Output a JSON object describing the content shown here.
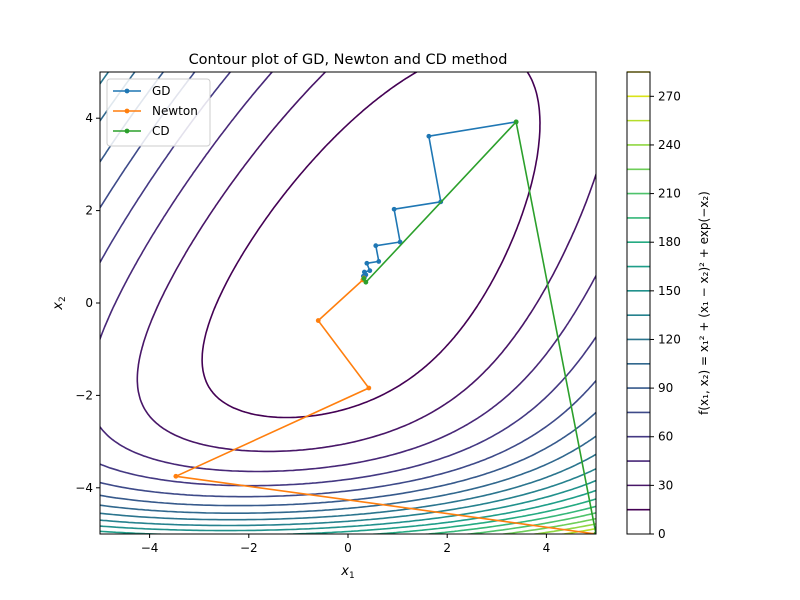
{
  "chart_data": {
    "type": "line",
    "title": "Contour plot of GD, Newton and CD method",
    "xlabel_base": "x",
    "xlabel_sub": "1",
    "ylabel_base": "x",
    "ylabel_sub": "2",
    "xlim": [
      -5,
      5
    ],
    "ylim": [
      -5,
      5
    ],
    "xticks": [
      -4,
      -2,
      0,
      2,
      4
    ],
    "yticks": [
      -4,
      -2,
      0,
      2,
      4
    ],
    "xtick_labels": [
      "−4",
      "−2",
      "0",
      "2",
      "4"
    ],
    "ytick_labels": [
      "−4",
      "−2",
      "0",
      "2",
      "4"
    ],
    "legend_position": "upper-left",
    "series": [
      {
        "name": "GD",
        "color": "#1f77b4",
        "x": [
          3.39,
          1.63,
          1.87,
          0.93,
          1.05,
          0.56,
          0.62,
          0.38,
          0.44,
          0.33,
          0.36,
          0.31,
          0.33
        ],
        "y": [
          3.92,
          3.61,
          2.19,
          2.03,
          1.32,
          1.24,
          0.9,
          0.86,
          0.7,
          0.67,
          0.61,
          0.58,
          0.55
        ]
      },
      {
        "name": "Newton",
        "color": "#ff7f0e",
        "x": [
          5.0,
          -3.47,
          0.42,
          -0.6,
          0.3,
          0.32
        ],
        "y": [
          -5.0,
          -3.75,
          -1.84,
          -0.38,
          0.5,
          0.54
        ]
      },
      {
        "name": "CD",
        "color": "#2ca02c",
        "x": [
          5.0,
          3.39,
          0.36,
          0.32
        ],
        "y": [
          -5.0,
          3.92,
          0.45,
          0.53
        ]
      }
    ],
    "contour": {
      "function": "x1^2 + (x1 - x2)^2 + exp(-x2)",
      "levels": [
        15,
        30,
        45,
        60,
        75,
        90,
        105,
        120,
        135,
        150,
        165,
        180,
        195,
        210,
        225,
        240,
        255,
        270,
        285
      ],
      "colors": [
        "#440154",
        "#481668",
        "#482878",
        "#443983",
        "#3e4a89",
        "#375a8c",
        "#31688e",
        "#2b758e",
        "#26828e",
        "#21918c",
        "#1f9e89",
        "#25ab82",
        "#35b779",
        "#4ec36b",
        "#6ece58",
        "#90d743",
        "#b5de2b",
        "#dae319",
        "#fde725"
      ]
    },
    "colorbar": {
      "label": "f(x₁, x₂) = x₁² + (x₁ − x₂)² + exp(−x₂)",
      "range": [
        0,
        285
      ],
      "ticks": [
        0,
        30,
        60,
        90,
        120,
        150,
        180,
        210,
        240,
        270
      ]
    }
  }
}
